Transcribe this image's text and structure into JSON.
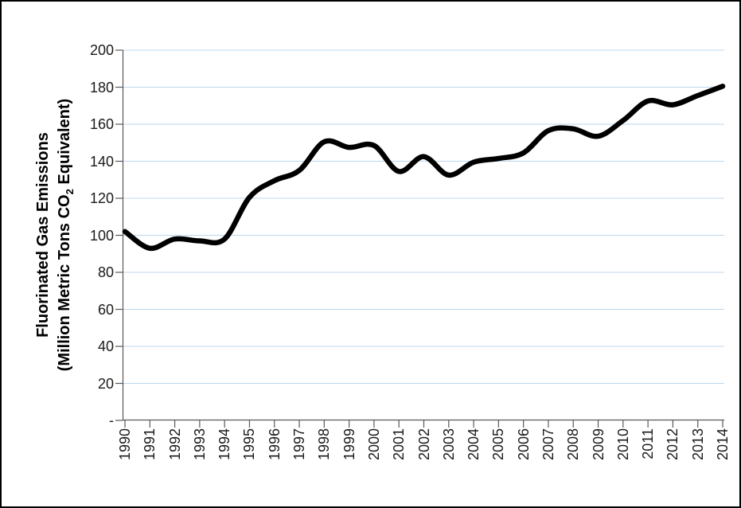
{
  "chart_data": {
    "type": "line",
    "title": "",
    "ylabel": {
      "line1": "Fluorinated Gas Emissions",
      "line2_pre": "(Million Metric Tons CO",
      "line2_sub": "2",
      "line2_post": " Equivalent)"
    },
    "x_labels": [
      "1990",
      "1991",
      "1992",
      "1993",
      "1994",
      "1995",
      "1996",
      "1997",
      "1998",
      "1999",
      "2000",
      "2001",
      "2002",
      "2003",
      "2004",
      "2005",
      "2006",
      "2007",
      "2008",
      "2009",
      "2010",
      "2011",
      "2012",
      "2013",
      "2014"
    ],
    "series": [
      {
        "values": [
          102,
          93,
          98,
          97,
          98,
          120.5,
          129.5,
          135,
          150.5,
          147.5,
          148.5,
          134.5,
          142.5,
          132.5,
          139.5,
          141.5,
          144.5,
          156.5,
          157.5,
          153.5,
          162,
          172.5,
          170.5,
          175.5,
          180.5
        ],
        "smooth": true
      }
    ],
    "ylim": [
      0,
      200
    ],
    "ytick_step": 20,
    "ytick_labels_top_to_bottom": [
      "200",
      "180",
      "160",
      "140",
      "120",
      "100",
      "80",
      "60",
      "40",
      "20",
      "-"
    ],
    "grid": true,
    "legend": "none",
    "styles": {
      "line_color": "#000000",
      "line_width": 6.5,
      "grid_color": "#BDD7EE",
      "axis_color": "#595959",
      "tick_label_color": "#1a1a1a",
      "background": "#FFFFFF",
      "frame_color": "#000000"
    }
  }
}
